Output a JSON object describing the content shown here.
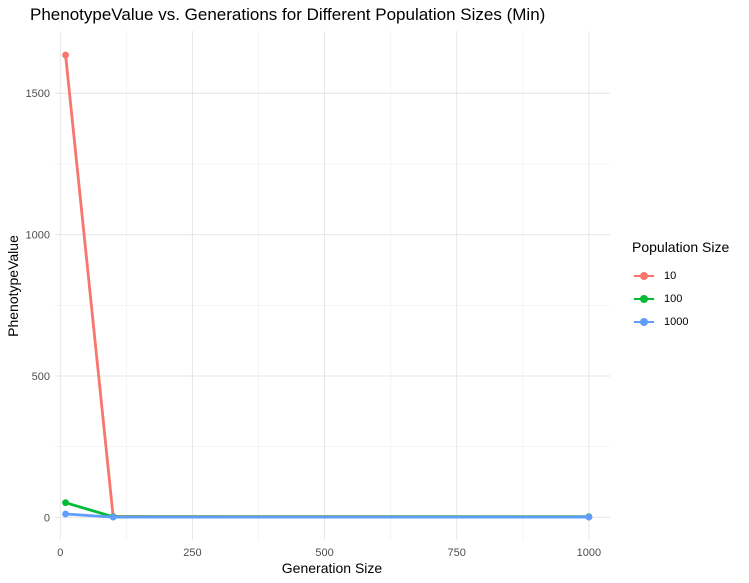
{
  "chart_data": {
    "type": "line",
    "title": "PhenotypeValue vs. Generations for Different Population Sizes (Min)",
    "xlabel": "Generation Size",
    "ylabel": "PhenotypeValue",
    "xlim": [
      -10,
      1040
    ],
    "ylim": [
      -80,
      1720
    ],
    "xticks": [
      0,
      250,
      500,
      750,
      1000
    ],
    "xtick_labels": [
      "0",
      "250",
      "500",
      "750",
      "1000"
    ],
    "yticks": [
      0,
      500,
      1000,
      1500
    ],
    "ytick_labels": [
      "0",
      "500",
      "1000",
      "1500"
    ],
    "grid": true,
    "legend": {
      "title": "Population Size",
      "placement": "right"
    },
    "series": [
      {
        "name": "10",
        "color": "#F8766D",
        "x": [
          10,
          100,
          1000
        ],
        "y": [
          1635,
          3,
          2
        ]
      },
      {
        "name": "100",
        "color": "#00BA38",
        "x": [
          10,
          100,
          1000
        ],
        "y": [
          52,
          2,
          2
        ]
      },
      {
        "name": "1000",
        "color": "#619CFF",
        "x": [
          10,
          100,
          1000
        ],
        "y": [
          12,
          1,
          1
        ]
      }
    ]
  }
}
